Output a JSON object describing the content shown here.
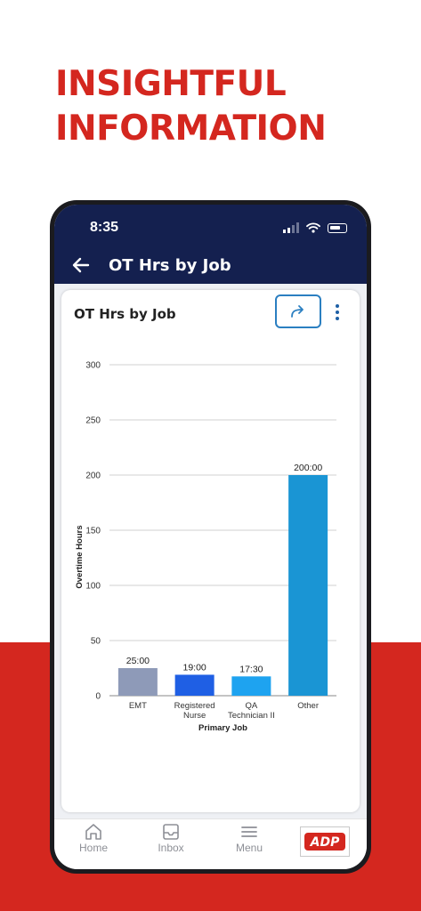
{
  "headline": {
    "line1": "INSIGHTFUL",
    "line2": "INFORMATION"
  },
  "status_bar": {
    "time": "8:35",
    "icons": [
      "signal-icon",
      "wifi-icon",
      "battery-icon"
    ]
  },
  "app_bar": {
    "title": "OT Hrs by Job",
    "back_icon": "arrow-left-icon"
  },
  "card": {
    "title": "OT Hrs by Job",
    "share_icon": "share-arrow-icon",
    "more_icon": "more-vertical-icon"
  },
  "chart_data": {
    "type": "bar",
    "categories": [
      [
        "EMT"
      ],
      [
        "Registered",
        "Nurse"
      ],
      [
        "QA",
        "Technician II"
      ],
      [
        "Other"
      ]
    ],
    "values": [
      25,
      19,
      17.5,
      200
    ],
    "data_labels": [
      "25:00",
      "19:00",
      "17:30",
      "200:00"
    ],
    "colors": [
      "#8e9ab8",
      "#1f5fe4",
      "#1ea3f0",
      "#1a95d4"
    ],
    "xlabel": "Primary Job",
    "ylabel": "Overtime Hours",
    "ylim": [
      0,
      300
    ],
    "yticks": [
      0,
      50,
      100,
      150,
      200,
      250,
      300
    ],
    "grid": true
  },
  "bottom_nav": {
    "items": [
      {
        "label": "Home",
        "icon": "home-icon"
      },
      {
        "label": "Inbox",
        "icon": "inbox-icon"
      },
      {
        "label": "Menu",
        "icon": "menu-icon"
      }
    ],
    "logo_text": "ADP"
  },
  "colors": {
    "brand_red": "#d4271f",
    "navy": "#14204f",
    "accent_blue": "#2b7fc1"
  }
}
